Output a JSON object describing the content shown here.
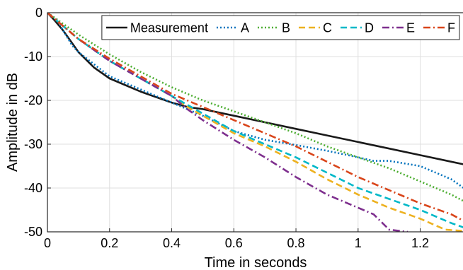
{
  "chart_data": {
    "type": "line",
    "xlabel": "Time in seconds",
    "ylabel": "Amplitude in dB",
    "xlim": [
      0,
      1.34
    ],
    "ylim": [
      -50,
      0
    ],
    "xticks": [
      0,
      0.2,
      0.4,
      0.6,
      0.8,
      1,
      1.2
    ],
    "xtick_labels": [
      "0",
      "0.2",
      "0.4",
      "0.6",
      "0.8",
      "1",
      "1.2"
    ],
    "yticks": [
      0,
      -10,
      -20,
      -30,
      -40,
      -50
    ],
    "ytick_labels": [
      "0",
      "-10",
      "-20",
      "-30",
      "-40",
      "-50"
    ],
    "grid": true,
    "legend_position": "top-right",
    "series": [
      {
        "name": "Measurement",
        "color": "#1a1a1a",
        "dash": "solid",
        "x": [
          0,
          0.02,
          0.05,
          0.1,
          0.15,
          0.2,
          0.3,
          0.4,
          0.45,
          0.5,
          0.6,
          0.7,
          0.8,
          0.9,
          1.0,
          1.1,
          1.2,
          1.3,
          1.34
        ],
        "y": [
          0,
          -1.5,
          -4,
          -9,
          -12.5,
          -15,
          -18,
          -20.5,
          -21.5,
          -22,
          -23.5,
          -25,
          -26.5,
          -28,
          -29.5,
          -31,
          -32.5,
          -34,
          -34.6
        ]
      },
      {
        "name": "A",
        "color": "#0072bd",
        "dash": "dot",
        "x": [
          0,
          0.03,
          0.05,
          0.08,
          0.1,
          0.2,
          0.3,
          0.4,
          0.5,
          0.6,
          0.7,
          0.8,
          0.9,
          1.0,
          1.05,
          1.1,
          1.2,
          1.3,
          1.34
        ],
        "y": [
          0,
          -1.5,
          -4,
          -7.5,
          -9,
          -14.5,
          -17.5,
          -20.5,
          -23.5,
          -27,
          -29,
          -30.2,
          -31.5,
          -33,
          -33.8,
          -33.8,
          -35,
          -38,
          -40
        ]
      },
      {
        "name": "B",
        "color": "#4dae32",
        "dash": "dot",
        "x": [
          0,
          0.05,
          0.1,
          0.2,
          0.3,
          0.4,
          0.5,
          0.6,
          0.7,
          0.8,
          0.9,
          1.0,
          1.1,
          1.2,
          1.3,
          1.34
        ],
        "y": [
          0,
          -2.5,
          -5,
          -9.5,
          -13.5,
          -17,
          -20,
          -22.5,
          -25,
          -27.5,
          -30.5,
          -33,
          -35.5,
          -38.5,
          -41.5,
          -43
        ]
      },
      {
        "name": "C",
        "color": "#edb120",
        "dash": "dash",
        "x": [
          0,
          0.05,
          0.1,
          0.2,
          0.3,
          0.4,
          0.45,
          0.5,
          0.6,
          0.7,
          0.8,
          0.9,
          1.0,
          1.1,
          1.2,
          1.28,
          1.34
        ],
        "y": [
          0,
          -3,
          -6,
          -11,
          -15,
          -19,
          -21.5,
          -23.5,
          -27.5,
          -30.5,
          -34,
          -38,
          -41.5,
          -44.5,
          -47,
          -49.5,
          -49.8
        ]
      },
      {
        "name": "D",
        "color": "#00b8c8",
        "dash": "dash",
        "x": [
          0,
          0.05,
          0.1,
          0.2,
          0.3,
          0.4,
          0.45,
          0.5,
          0.6,
          0.7,
          0.8,
          0.9,
          1.0,
          1.1,
          1.2,
          1.3,
          1.34
        ],
        "y": [
          0,
          -3,
          -6,
          -11,
          -15,
          -19,
          -21,
          -23,
          -27,
          -30,
          -33,
          -36.5,
          -40,
          -42.5,
          -45,
          -48,
          -49
        ]
      },
      {
        "name": "E",
        "color": "#7e2f8e",
        "dash": "dashdot",
        "x": [
          0,
          0.05,
          0.1,
          0.2,
          0.3,
          0.4,
          0.45,
          0.5,
          0.6,
          0.7,
          0.8,
          0.9,
          1.0,
          1.05,
          1.1,
          1.16
        ],
        "y": [
          0,
          -3,
          -6,
          -11,
          -15,
          -19,
          -22,
          -24.5,
          -29,
          -33,
          -37.5,
          -41.5,
          -44.5,
          -46,
          -49.5,
          -50
        ]
      },
      {
        "name": "F",
        "color": "#d9451a",
        "dash": "dashdot",
        "x": [
          0,
          0.05,
          0.1,
          0.2,
          0.3,
          0.4,
          0.5,
          0.6,
          0.7,
          0.8,
          0.9,
          1.0,
          1.1,
          1.2,
          1.3,
          1.34
        ],
        "y": [
          0,
          -3,
          -6,
          -10.5,
          -14.5,
          -18.5,
          -21.5,
          -24.5,
          -27.5,
          -30.5,
          -34,
          -37.5,
          -40.5,
          -43.5,
          -46,
          -47.5
        ]
      }
    ]
  }
}
